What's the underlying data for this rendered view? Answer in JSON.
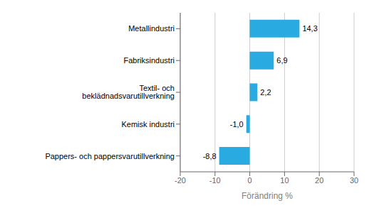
{
  "chart_data": {
    "type": "bar",
    "orientation": "horizontal",
    "categories": [
      "Pappers- och pappersvarutillverkning",
      "Kemisk industri",
      "Textil- och beklädnadsvarutillverkning",
      "Fabriksindustri",
      "Metallindustri"
    ],
    "values": [
      -8.8,
      -1.0,
      2.2,
      6.9,
      14.3
    ],
    "value_labels": [
      "-8,8",
      "-1,0",
      "2,2",
      "6,9",
      "14,3"
    ],
    "color": "#29ABE2",
    "xlabel": "Förändring %",
    "xlim": [
      -20,
      30
    ],
    "xticks": [
      -20,
      -10,
      0,
      10,
      20,
      30
    ],
    "grid": true,
    "data_labels": true
  }
}
